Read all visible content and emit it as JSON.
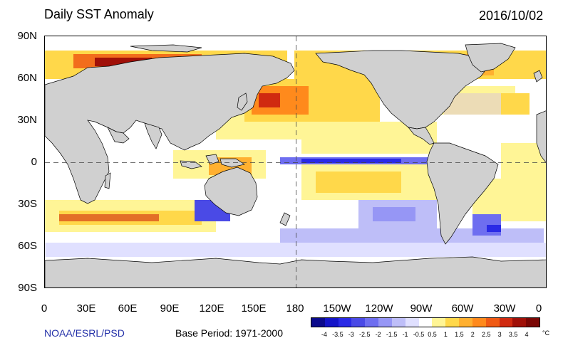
{
  "title": "Daily SST Anomaly",
  "date": "2016/10/02",
  "lat_labels": [
    "90N",
    "60N",
    "30N",
    "0",
    "30S",
    "60S",
    "90S"
  ],
  "lon_labels": [
    "0",
    "30E",
    "60E",
    "90E",
    "120E",
    "150E",
    "180",
    "150W",
    "120W",
    "90W",
    "60W",
    "30W",
    "0"
  ],
  "credit": "NOAA/ESRL/PSD",
  "base_period": "Base Period: 1971-2000",
  "colorbar": {
    "labels": [
      "-4",
      "-3.5",
      "-3",
      "-2.5",
      "-2",
      "-1.5",
      "-1",
      "-0.5",
      "0.5",
      "1",
      "1.5",
      "2",
      "2.5",
      "3",
      "3.5",
      "4"
    ],
    "unit": "°C",
    "colors": [
      "#0b0a8c",
      "#1414c8",
      "#2a2ae6",
      "#4a4ae6",
      "#6e6ef0",
      "#9696f5",
      "#bebef8",
      "#e0e0ff",
      "#ffffff",
      "#fff596",
      "#ffd84a",
      "#ffb030",
      "#ff8a1c",
      "#f05a14",
      "#d02a10",
      "#a01008",
      "#7a0604"
    ]
  },
  "colors": {
    "land": "#d0d0d0",
    "ocean_base": "#ffffff"
  }
}
